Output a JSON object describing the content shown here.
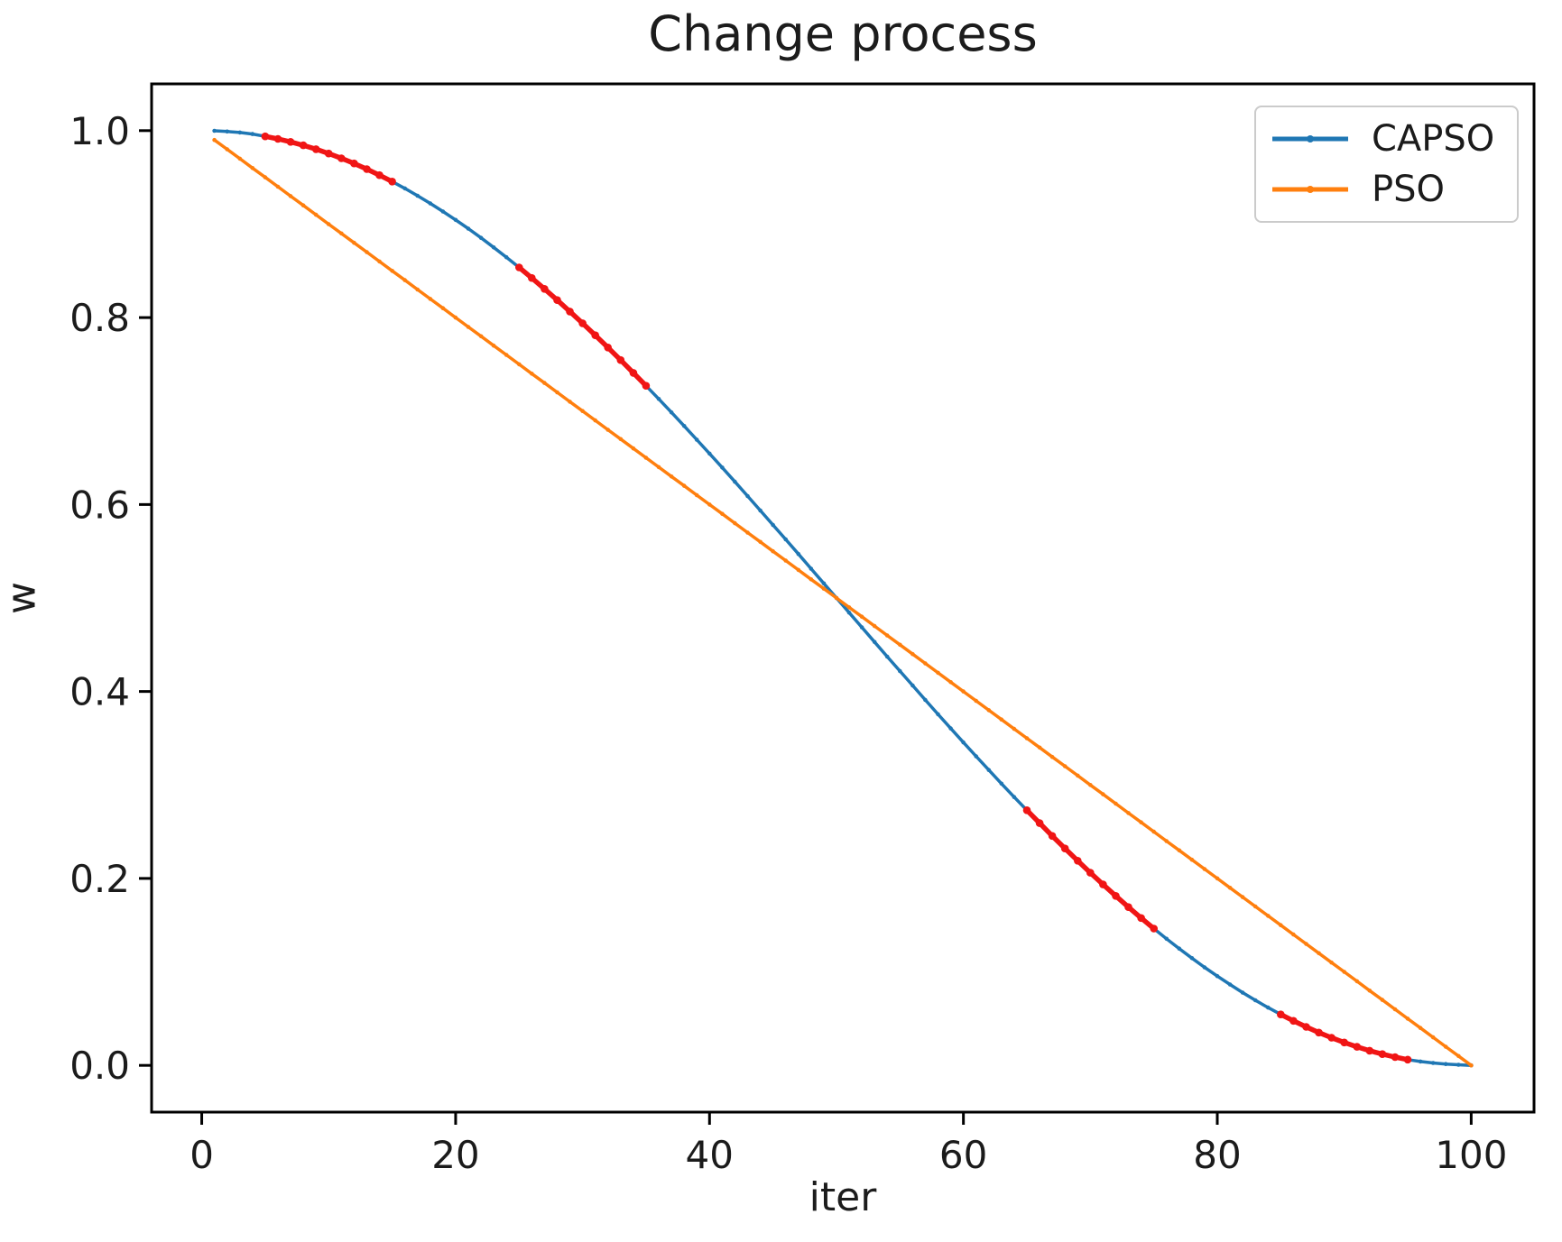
{
  "chart_data": {
    "type": "line",
    "title": "Change process",
    "xlabel": "iter",
    "ylabel": "w",
    "xlim": [
      -3.95,
      104.95
    ],
    "ylim": [
      -0.05,
      1.05
    ],
    "grid": false,
    "x_ticks": {
      "values": [
        0,
        20,
        40,
        60,
        80,
        100
      ],
      "labels": [
        "0",
        "20",
        "40",
        "60",
        "80",
        "100"
      ]
    },
    "y_ticks": {
      "values": [
        0.0,
        0.2,
        0.4,
        0.6,
        0.8,
        1.0
      ],
      "labels": [
        "0.0",
        "0.2",
        "0.4",
        "0.6",
        "0.8",
        "1.0"
      ]
    },
    "legend": {
      "position": "upper-right",
      "entries": [
        {
          "label": "CAPSO",
          "color": "#1f77b4"
        },
        {
          "label": "PSO",
          "color": "#ff7f0e"
        }
      ]
    },
    "series": [
      {
        "name": "CAPSO",
        "color": "#1f77b4",
        "marker": "dot",
        "x": [
          1,
          5,
          10,
          15,
          20,
          25,
          30,
          35,
          40,
          45,
          50,
          55,
          60,
          65,
          70,
          75,
          80,
          85,
          90,
          95,
          100
        ],
        "y": [
          0.9998,
          0.9938,
          0.9755,
          0.9455,
          0.9045,
          0.8536,
          0.7939,
          0.727,
          0.6545,
          0.5782,
          0.5,
          0.4218,
          0.3455,
          0.273,
          0.2061,
          0.1464,
          0.0955,
          0.0545,
          0.0245,
          0.0062,
          0.0
        ]
      },
      {
        "name": "PSO",
        "color": "#ff7f0e",
        "marker": "dot",
        "x": [
          1,
          100
        ],
        "y": [
          0.99,
          0.0
        ]
      }
    ],
    "highlight_segments": {
      "series": "CAPSO",
      "color": "#f01515",
      "marker": "dot",
      "x_ranges": [
        [
          5,
          15
        ],
        [
          25,
          35
        ],
        [
          65,
          75
        ],
        [
          85,
          95
        ]
      ]
    }
  }
}
